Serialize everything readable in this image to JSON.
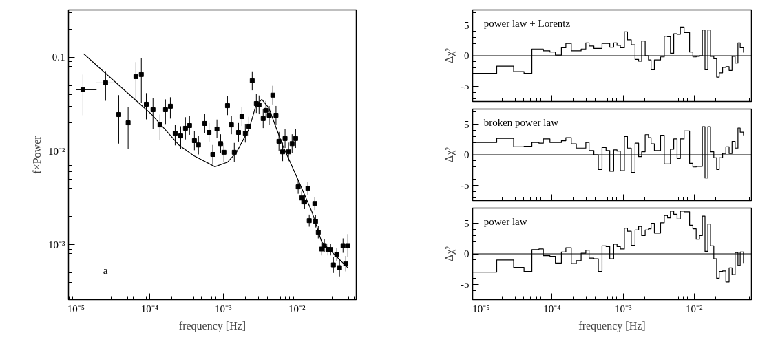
{
  "chart_data": [
    {
      "type": "scatter",
      "log": "xy",
      "xlabel": "frequency [Hz]",
      "ylabel": "f×Power",
      "xlim": [
        7.9e-06,
        0.064
      ],
      "ylim": [
        0.00026,
        0.32
      ],
      "xticks": [
        {
          "value": 1e-05,
          "label": "10⁻⁵"
        },
        {
          "value": 0.0001,
          "label": "10⁻⁴"
        },
        {
          "value": 0.001,
          "label": "10⁻³"
        },
        {
          "value": 0.01,
          "label": "10⁻²"
        }
      ],
      "yticks": [
        {
          "value": 0.001,
          "label": "10⁻³"
        },
        {
          "value": 0.01,
          "label": "10⁻²"
        },
        0.1
      ],
      "annotations": [
        "a"
      ],
      "series": [
        {
          "color": "#000000",
          "marker": "square",
          "x": [
            1.24e-05,
            2.52e-05,
            3.8e-05,
            5.1e-05,
            6.5e-05,
            7.7e-05,
            9e-05,
            0.000111,
            0.000138,
            0.000164,
            0.000191,
            0.000222,
            0.000264,
            0.000306,
            0.000348,
            0.000405,
            0.00046,
            0.00056,
            0.00064,
            0.00072,
            0.00082,
            0.00092,
            0.00102,
            0.00114,
            0.00129,
            0.00141,
            0.00161,
            0.00179,
            0.00199,
            0.00222,
            0.00247,
            0.00281,
            0.00306,
            0.00348,
            0.00379,
            0.0042,
            0.0047,
            0.0052,
            0.0057,
            0.0064,
            0.0069,
            0.0077,
            0.0086,
            0.0096,
            0.0104,
            0.0116,
            0.0127,
            0.0141,
            0.0147,
            0.0175,
            0.0179,
            0.0195,
            0.0217,
            0.0236,
            0.0264,
            0.0287,
            0.0313,
            0.0348,
            0.0379,
            0.0423,
            0.0461,
            0.0492
          ],
          "values": [
            0.0451,
            0.0534,
            0.0245,
            0.02,
            0.0622,
            0.0655,
            0.0316,
            0.0276,
            0.019,
            0.0276,
            0.0301,
            0.0155,
            0.0145,
            0.0175,
            0.0187,
            0.0129,
            0.0116,
            0.0197,
            0.0158,
            0.0092,
            0.0172,
            0.012,
            0.0097,
            0.0305,
            0.019,
            0.0097,
            0.0158,
            0.0233,
            0.0155,
            0.0184,
            0.0562,
            0.0321,
            0.0311,
            0.0222,
            0.0272,
            0.0241,
            0.0395,
            0.0241,
            0.0127,
            0.0098,
            0.0136,
            0.0098,
            0.012,
            0.0136,
            0.00415,
            0.00316,
            0.00286,
            0.004,
            0.00181,
            0.00276,
            0.00178,
            0.00136,
            0.0009,
            0.00098,
            0.00089,
            0.00089,
            0.00061,
            0.00079,
            0.00057,
            0.00098,
            0.00063,
            0.00098
          ],
          "errors": [
            [
              0.0241,
              0.0655
            ],
            [
              0.0344,
              0.0713
            ],
            [
              0.012,
              0.0395
            ],
            [
              0.0105,
              0.0296
            ],
            [
              0.0338,
              0.0889
            ],
            [
              0.0327,
              0.0984
            ],
            [
              0.0218,
              0.0415
            ],
            [
              0.0172,
              0.0368
            ],
            [
              0.0131,
              0.0245
            ],
            [
              0.0194,
              0.0356
            ],
            [
              0.0222,
              0.0375
            ],
            [
              0.0115,
              0.019
            ],
            [
              0.0105,
              0.0184
            ],
            [
              0.0133,
              0.023
            ],
            [
              0.0149,
              0.0235
            ],
            [
              0.0102,
              0.0163
            ],
            [
              0.0092,
              0.0146
            ],
            [
              0.0156,
              0.0248
            ],
            [
              0.0126,
              0.0199
            ],
            [
              0.0073,
              0.0116
            ],
            [
              0.0137,
              0.0217
            ],
            [
              0.0095,
              0.0151
            ],
            [
              0.0077,
              0.0122
            ],
            [
              0.0242,
              0.0384
            ],
            [
              0.0151,
              0.0239
            ],
            [
              0.0077,
              0.0122
            ],
            [
              0.0126,
              0.0199
            ],
            [
              0.0185,
              0.0293
            ],
            [
              0.0123,
              0.0195
            ],
            [
              0.0146,
              0.0232
            ],
            [
              0.0446,
              0.0708
            ],
            [
              0.0255,
              0.0404
            ],
            [
              0.0247,
              0.0392
            ],
            [
              0.0176,
              0.0279
            ],
            [
              0.0216,
              0.0342
            ],
            [
              0.0191,
              0.0303
            ],
            [
              0.0314,
              0.0497
            ],
            [
              0.0191,
              0.0303
            ],
            [
              0.0101,
              0.016
            ],
            [
              0.0078,
              0.0123
            ],
            [
              0.0108,
              0.0171
            ],
            [
              0.0078,
              0.0123
            ],
            [
              0.0095,
              0.0151
            ],
            [
              0.0108,
              0.0171
            ],
            [
              0.0035,
              0.0049
            ],
            [
              0.0027,
              0.0037
            ],
            [
              0.0024,
              0.0034
            ],
            [
              0.0034,
              0.0047
            ],
            [
              0.00156,
              0.0021
            ],
            [
              0.00235,
              0.0032
            ],
            [
              0.00153,
              0.00207
            ],
            [
              0.00117,
              0.00158
            ],
            [
              0.00077,
              0.00105
            ],
            [
              0.00084,
              0.00114
            ],
            [
              0.00077,
              0.00103
            ],
            [
              0.00077,
              0.00103
            ],
            [
              0.0005,
              0.00074
            ],
            [
              0.00067,
              0.00093
            ],
            [
              0.00046,
              0.0007
            ],
            [
              0.00082,
              0.00117
            ],
            [
              0.00052,
              0.00076
            ],
            [
              0.00074,
              0.0013
            ]
          ],
          "xerrors": [
            [
              1e-05,
              1.9e-05
            ],
            [
              1.87e-05,
              3.33e-05
            ],
            null,
            null,
            null,
            null,
            null,
            null,
            null,
            null,
            null,
            null,
            null,
            null,
            null,
            null,
            null,
            null,
            null,
            null,
            null,
            null,
            null,
            null,
            null,
            null,
            null,
            null,
            null,
            null,
            null,
            null,
            null,
            null,
            null,
            null,
            null,
            null,
            null,
            null,
            null,
            null,
            null,
            null,
            null,
            null,
            null,
            null,
            null,
            null,
            null,
            null,
            null,
            null,
            null,
            null,
            null,
            null,
            null,
            null,
            null,
            null
          ]
        },
        {
          "type": "line",
          "marker": "none",
          "color": "#000000",
          "x": [
            1.27e-05,
            0.000107,
            0.000252,
            0.0004,
            0.00077,
            0.00114,
            0.00151,
            0.00226,
            0.00275,
            0.00333,
            0.00414,
            0.0064,
            0.0104,
            0.0161,
            0.0217,
            0.0492
          ],
          "values": [
            0.109,
            0.0245,
            0.0115,
            0.0089,
            0.0068,
            0.0076,
            0.0097,
            0.0175,
            0.03,
            0.0356,
            0.029,
            0.0115,
            0.0049,
            0.00222,
            0.00107,
            0.00057
          ]
        }
      ]
    },
    {
      "type": "step",
      "log": "x",
      "ylabel": "Δχ²",
      "tick_labels": "y",
      "xlim": [
        7.6e-06,
        0.064
      ],
      "ylim": [
        -7.5,
        7.5
      ],
      "xticks": [
        {
          "value": 1e-05,
          "label": null
        },
        {
          "value": 0.0001,
          "label": null
        },
        {
          "value": 0.001,
          "label": null
        },
        {
          "value": 0.01,
          "label": null
        }
      ],
      "yticks": [
        -5,
        0,
        5
      ],
      "annotations": [
        "power law + Lorentz"
      ],
      "ref_lines": [
        {
          "axis": "y",
          "value": 0,
          "color": "#000000"
        }
      ],
      "series": [
        {
          "color": "#000000",
          "x": [
            7.6e-06,
            1.66e-05,
            2.87e-05,
            4.02e-05,
            5.19e-05,
            6.52e-05,
            7.52e-05,
            9.31e-05,
            0.000111,
            0.000135,
            0.000156,
            0.000186,
            0.000219,
            0.000256,
            0.000298,
            0.000331,
            0.000387,
            0.000447,
            0.000504,
            0.000574,
            0.000647,
            0.000736,
            0.000819,
            0.000912,
            0.00104,
            0.00115,
            0.0013,
            0.00147,
            0.00165,
            0.00182,
            0.00204,
            0.00227,
            0.00247,
            0.00275,
            0.00336,
            0.00379,
            0.00422,
            0.00463,
            0.00515,
            0.00574,
            0.00638,
            0.00721,
            0.00861,
            0.00958,
            0.01066,
            0.01186,
            0.01302,
            0.01419,
            0.01556,
            0.01695,
            0.01888,
            0.0207,
            0.0225,
            0.0251,
            0.0279,
            0.031,
            0.0341,
            0.0377,
            0.0413,
            0.0444,
            0.0494
          ],
          "values": [
            -2.9,
            -1.7,
            -2.6,
            -2.9,
            1.1,
            1.1,
            0.8,
            0.6,
            0.1,
            1.3,
            2.0,
            0.8,
            0.8,
            1.1,
            2.1,
            1.6,
            1.2,
            1.2,
            2.0,
            2.0,
            1.4,
            2.1,
            1.7,
            1.3,
            3.9,
            2.6,
            1.8,
            -0.6,
            -0.9,
            2.4,
            0.0,
            -0.7,
            -2.3,
            -0.7,
            -0.2,
            3.2,
            3.1,
            0.4,
            3.6,
            3.5,
            4.7,
            3.8,
            0.6,
            -0.2,
            -0.1,
            0.0,
            4.2,
            -2.3,
            4.2,
            -0.1,
            -0.5,
            -3.5,
            -2.8,
            -1.9,
            -1.8,
            -2.4,
            -0.1,
            -1.2,
            2.1,
            1.3,
            0.5
          ]
        }
      ]
    },
    {
      "type": "step",
      "log": "x",
      "ylabel": "Δχ²",
      "tick_labels": "y",
      "xlim": [
        7.6e-06,
        0.064
      ],
      "ylim": [
        -7.5,
        7.5
      ],
      "xticks": [
        {
          "value": 1e-05,
          "label": null
        },
        {
          "value": 0.0001,
          "label": null
        },
        {
          "value": 0.001,
          "label": null
        },
        {
          "value": 0.01,
          "label": null
        }
      ],
      "yticks": [
        -5,
        0,
        5
      ],
      "annotations": [
        "broken power law"
      ],
      "ref_lines": [
        {
          "axis": "y",
          "value": 0,
          "color": "#000000"
        }
      ],
      "series": [
        {
          "color": "#000000",
          "x": [
            7.6e-06,
            1.66e-05,
            2.87e-05,
            4.02e-05,
            5.19e-05,
            6.52e-05,
            7.52e-05,
            9.31e-05,
            0.000111,
            0.000135,
            0.000156,
            0.000186,
            0.000219,
            0.000256,
            0.000298,
            0.000331,
            0.000387,
            0.000447,
            0.000504,
            0.000574,
            0.000647,
            0.000736,
            0.000819,
            0.000912,
            0.00104,
            0.00115,
            0.0013,
            0.00147,
            0.00165,
            0.00182,
            0.00204,
            0.00227,
            0.00247,
            0.00275,
            0.00336,
            0.00379,
            0.00422,
            0.00463,
            0.00515,
            0.00574,
            0.00638,
            0.00721,
            0.00861,
            0.00958,
            0.01066,
            0.01186,
            0.01302,
            0.01419,
            0.01556,
            0.01695,
            0.01888,
            0.0207,
            0.0225,
            0.0251,
            0.0279,
            0.031,
            0.0341,
            0.0377,
            0.0413,
            0.0444,
            0.0494
          ],
          "values": [
            2.0,
            2.7,
            1.3,
            1.4,
            2.0,
            1.9,
            2.6,
            2.0,
            2.0,
            2.3,
            2.8,
            1.8,
            1.1,
            1.1,
            2.0,
            0.7,
            0.0,
            -2.4,
            1.2,
            0.7,
            -2.7,
            0.8,
            0.6,
            -2.6,
            3.0,
            1.1,
            -2.9,
            1.9,
            -0.3,
            0.5,
            3.3,
            2.8,
            1.8,
            0.7,
            3.2,
            -1.5,
            -1.5,
            0.9,
            2.6,
            -0.6,
            2.6,
            3.9,
            -1.4,
            -2.0,
            -1.9,
            -1.9,
            4.6,
            -3.8,
            4.6,
            0.5,
            -0.5,
            -2.4,
            -0.5,
            0.2,
            1.3,
            0.2,
            2.2,
            1.1,
            4.4,
            3.7,
            3.2
          ]
        }
      ]
    },
    {
      "type": "step",
      "log": "x",
      "xlabel": "frequency [Hz]",
      "ylabel": "Δχ²",
      "xlim": [
        7.6e-06,
        0.064
      ],
      "ylim": [
        -7.5,
        7.5
      ],
      "xticks": [
        {
          "value": 1e-05,
          "label": "10⁻⁵"
        },
        {
          "value": 0.0001,
          "label": "10⁻⁴"
        },
        {
          "value": 0.001,
          "label": "10⁻³"
        },
        {
          "value": 0.01,
          "label": "10⁻²"
        }
      ],
      "yticks": [
        -5,
        0,
        5
      ],
      "annotations": [
        "power law"
      ],
      "ref_lines": [
        {
          "axis": "y",
          "value": 0,
          "color": "#000000"
        }
      ],
      "series": [
        {
          "color": "#000000",
          "x": [
            7.6e-06,
            1.66e-05,
            2.87e-05,
            4.02e-05,
            5.19e-05,
            6.52e-05,
            7.52e-05,
            9.31e-05,
            0.000111,
            0.000135,
            0.000156,
            0.000186,
            0.000219,
            0.000256,
            0.000298,
            0.000331,
            0.000387,
            0.000447,
            0.000504,
            0.000574,
            0.000647,
            0.000736,
            0.000819,
            0.000912,
            0.00104,
            0.00115,
            0.0013,
            0.00147,
            0.00165,
            0.00182,
            0.00204,
            0.00227,
            0.00247,
            0.00275,
            0.00336,
            0.00379,
            0.00422,
            0.00463,
            0.00515,
            0.00574,
            0.00638,
            0.00721,
            0.00861,
            0.00958,
            0.01066,
            0.01186,
            0.01302,
            0.01419,
            0.01556,
            0.01695,
            0.01888,
            0.0207,
            0.0225,
            0.0251,
            0.0279,
            0.031,
            0.0341,
            0.0377,
            0.0413,
            0.0444,
            0.0494
          ],
          "values": [
            -3.0,
            -1.0,
            -2.2,
            -2.9,
            0.7,
            0.8,
            -0.3,
            -0.4,
            -1.5,
            0.3,
            1.0,
            -1.6,
            -1.1,
            0.1,
            0.6,
            -0.7,
            -0.8,
            -2.9,
            1.3,
            1.2,
            -0.8,
            1.6,
            1.2,
            0.8,
            4.2,
            3.7,
            1.4,
            3.9,
            4.5,
            3.0,
            3.9,
            4.1,
            5.0,
            3.4,
            5.1,
            6.3,
            5.9,
            7.0,
            6.5,
            5.7,
            7.0,
            6.9,
            4.7,
            4.1,
            2.4,
            3.0,
            6.2,
            0.4,
            4.9,
            1.3,
            -0.8,
            -4.0,
            -2.9,
            -2.8,
            -4.6,
            -2.3,
            -3.4,
            0.2,
            -1.9,
            0.3,
            -1.5
          ]
        }
      ]
    }
  ]
}
